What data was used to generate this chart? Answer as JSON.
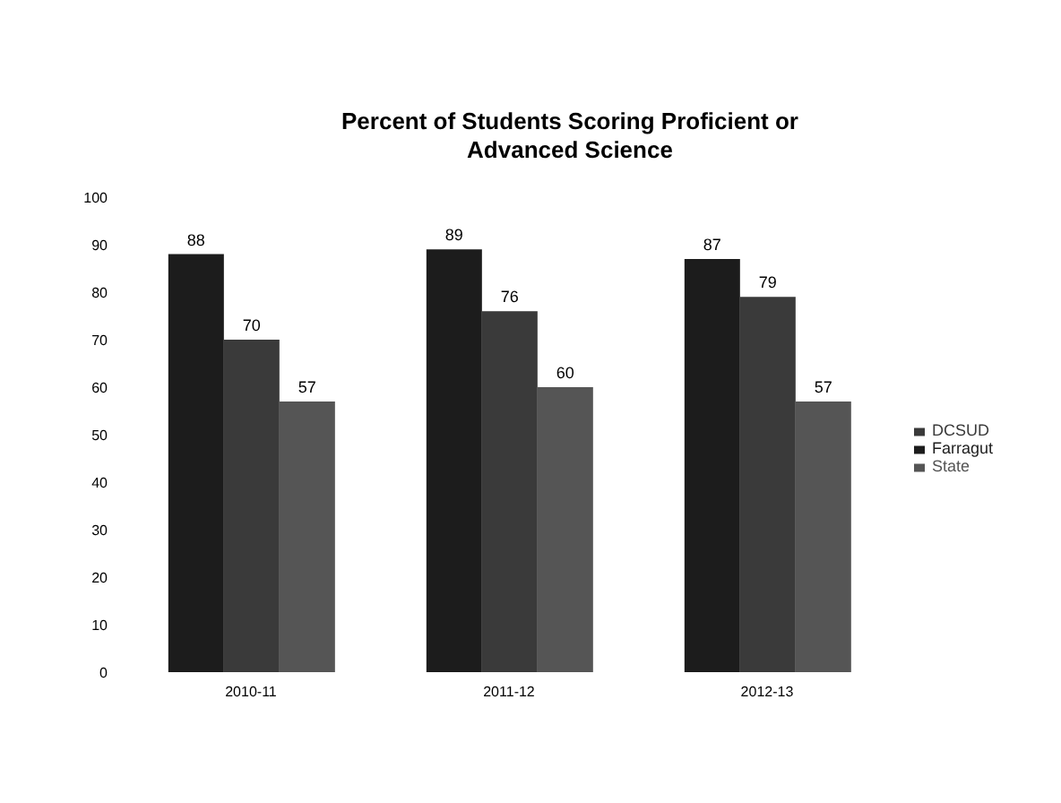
{
  "chart_data": {
    "type": "bar",
    "title": "Percent of Students Scoring Proficient or Advanced Science",
    "categories": [
      "2010-11",
      "2011-12",
      "2012-13"
    ],
    "series": [
      {
        "name": "Farragut",
        "color": "#1c1c1c",
        "values": [
          88,
          89,
          87
        ]
      },
      {
        "name": "DCSUD",
        "color": "#3a3a3a",
        "values": [
          70,
          76,
          79
        ]
      },
      {
        "name": "State",
        "color": "#555555",
        "values": [
          57,
          60,
          57
        ]
      }
    ],
    "ylim": [
      0,
      100
    ],
    "yticks": [
      0,
      10,
      20,
      30,
      40,
      50,
      60,
      70,
      80,
      90,
      100
    ],
    "grid": false,
    "legend": "right",
    "data_labels": true
  }
}
